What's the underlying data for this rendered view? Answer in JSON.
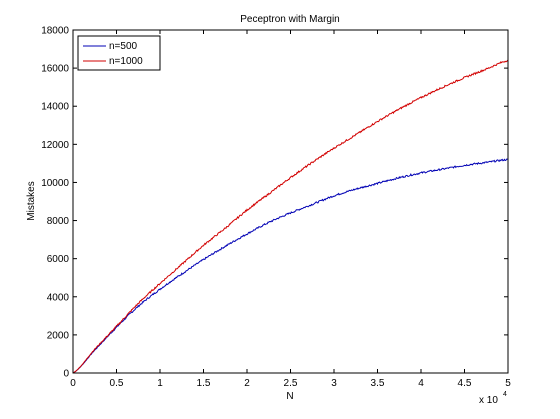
{
  "chart_data": {
    "type": "line",
    "title": "Peceptron with Margin",
    "xlabel": "N",
    "ylabel": "Mistakes",
    "x_multiplier_label": "x 10",
    "x_multiplier_exponent": "4",
    "xlim": [
      0,
      5
    ],
    "ylim": [
      0,
      18000
    ],
    "xticks": [
      "0",
      "0.5",
      "1",
      "1.5",
      "2",
      "2.5",
      "3",
      "3.5",
      "4",
      "4.5",
      "5"
    ],
    "yticks": [
      "0",
      "2000",
      "4000",
      "6000",
      "8000",
      "10000",
      "12000",
      "14000",
      "16000",
      "18000"
    ],
    "grid": false,
    "legend_position": "top-left",
    "x": [
      0,
      0.25,
      0.5,
      0.75,
      1.0,
      1.25,
      1.5,
      1.75,
      2.0,
      2.25,
      2.5,
      2.75,
      3.0,
      3.25,
      3.5,
      3.75,
      4.0,
      4.25,
      4.5,
      4.75,
      5.0
    ],
    "series": [
      {
        "name": "n=500",
        "color": "#0000b4",
        "values": [
          0,
          1200,
          2400,
          3500,
          4400,
          5200,
          5950,
          6650,
          7300,
          7900,
          8400,
          8850,
          9300,
          9650,
          9950,
          10250,
          10500,
          10700,
          10900,
          11050,
          11200
        ]
      },
      {
        "name": "n=1000",
        "color": "#d20000",
        "values": [
          0,
          1250,
          2450,
          3650,
          4700,
          5700,
          6700,
          7600,
          8550,
          9400,
          10250,
          11050,
          11800,
          12500,
          13200,
          13850,
          14450,
          15000,
          15500,
          15950,
          16400
        ]
      }
    ]
  }
}
